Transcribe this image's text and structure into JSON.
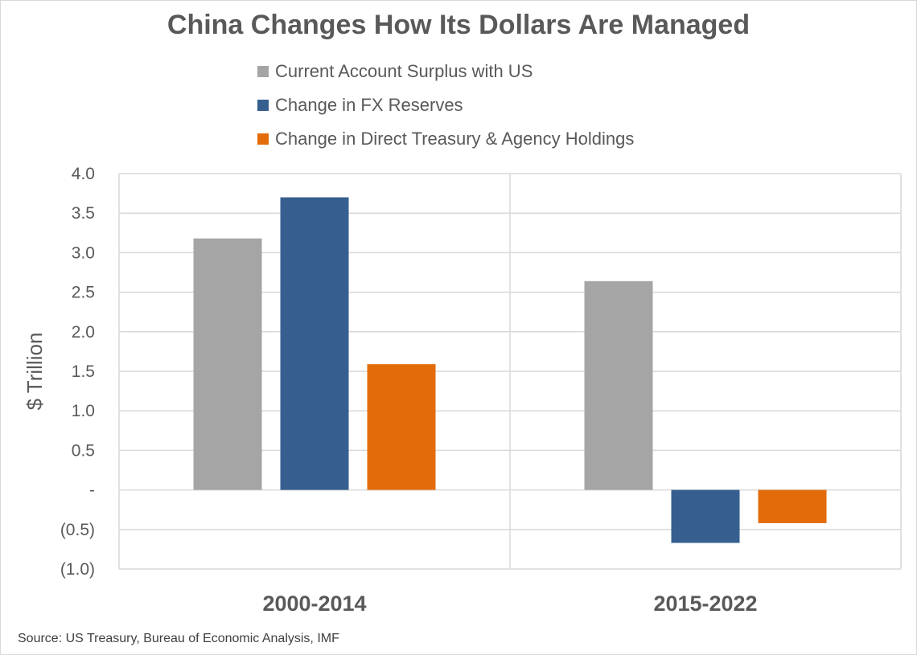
{
  "chart_data": {
    "type": "bar",
    "title": "China Changes How Its Dollars Are Managed",
    "ylabel": "$ Trillion",
    "xlabel": "",
    "categories": [
      "2000-2014",
      "2015-2022"
    ],
    "series": [
      {
        "name": "Current Account Surplus with US",
        "color": "#a5a5a5",
        "values": [
          3.18,
          2.64
        ]
      },
      {
        "name": "Change in FX Reserves",
        "color": "#365f8f",
        "values": [
          3.7,
          -0.67
        ]
      },
      {
        "name": "Change in Direct Treasury & Agency Holdings",
        "color": "#e36c0a",
        "values": [
          1.59,
          -0.42
        ]
      }
    ],
    "ylim": [
      -1.0,
      4.0
    ],
    "yticks": [
      4.0,
      3.5,
      3.0,
      2.5,
      2.0,
      1.5,
      1.0,
      0.5,
      0,
      -0.5,
      -1.0
    ],
    "ytick_labels": [
      "4.0",
      "3.5",
      "3.0",
      "2.5",
      "2.0",
      "1.5",
      "1.0",
      "0.5",
      "-",
      "(0.5)",
      "(1.0)"
    ],
    "grid": true,
    "legend": "top",
    "source": "Source: US Treasury, Bureau of Economic Analysis, IMF"
  }
}
